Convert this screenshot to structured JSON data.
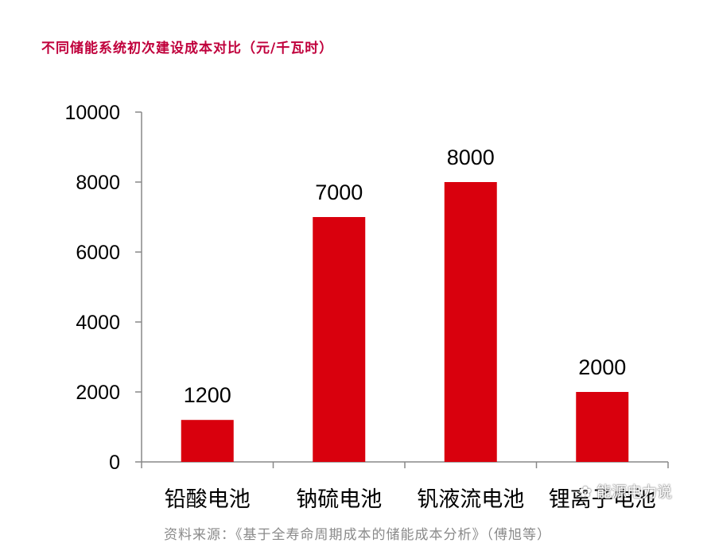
{
  "title": "不同储能系统初次建设成本对比（元/千瓦时）",
  "source": "资料来源：《基于全寿命周期成本的储能成本分析》（傅旭等）",
  "watermark": "能源电力说",
  "colors": {
    "bar": "#d9000d",
    "title": "#c0003c",
    "axis": "#888888"
  },
  "chart_data": {
    "type": "bar",
    "categories": [
      "铅酸电池",
      "钠硫电池",
      "钒液流电池",
      "锂离子电池"
    ],
    "values": [
      1200,
      7000,
      8000,
      2000
    ],
    "data_labels": [
      "1200",
      "7000",
      "8000",
      "2000"
    ],
    "yticks": [
      "0",
      "2000",
      "4000",
      "6000",
      "8000",
      "10000"
    ],
    "ylim": [
      0,
      10000
    ],
    "grid": false,
    "legend": "none"
  }
}
